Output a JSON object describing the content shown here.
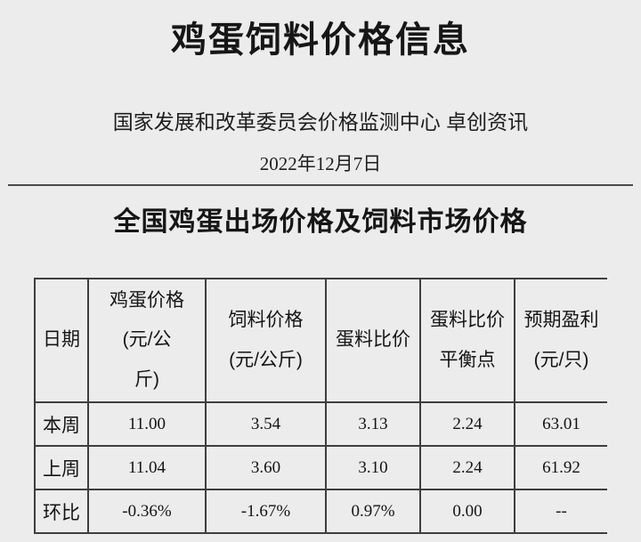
{
  "page": {
    "title": "鸡蛋饲料价格信息",
    "source": "国家发展和改革委员会价格监测中心 卓创资讯",
    "date": "2022年12月7日",
    "section_title": "全国鸡蛋出场价格及饲料市场价格"
  },
  "table": {
    "headers": [
      "日期",
      "鸡蛋价格\n(元/公\n斤)",
      "饲料价格\n(元/公斤)",
      "蛋料比价",
      "蛋料比价\n平衡点",
      "预期盈利\n(元/只)"
    ],
    "rows": [
      {
        "label": "本周",
        "cells": [
          "11.00",
          "3.54",
          "3.13",
          "2.24",
          "63.01"
        ]
      },
      {
        "label": "上周",
        "cells": [
          "11.04",
          "3.60",
          "3.10",
          "2.24",
          "61.92"
        ]
      },
      {
        "label": "环比",
        "cells": [
          "-0.36%",
          "-1.67%",
          "0.97%",
          "0.00",
          "--"
        ]
      }
    ]
  },
  "colors": {
    "background": "#ececec",
    "table_border": "#3e3e3e",
    "divider": "#4b4b4b",
    "text": "#1e1e1e"
  }
}
